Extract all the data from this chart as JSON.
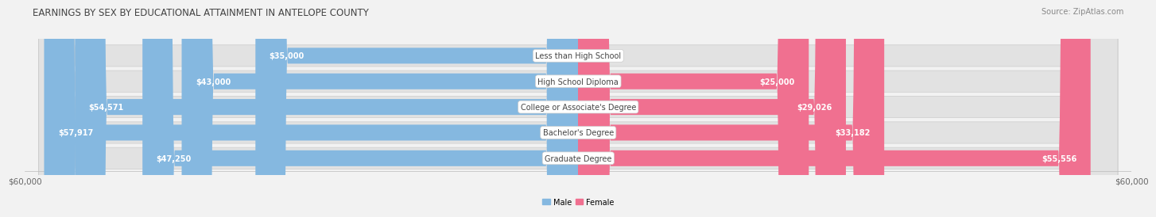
{
  "title": "EARNINGS BY SEX BY EDUCATIONAL ATTAINMENT IN ANTELOPE COUNTY",
  "source": "Source: ZipAtlas.com",
  "categories": [
    "Less than High School",
    "High School Diploma",
    "College or Associate's Degree",
    "Bachelor's Degree",
    "Graduate Degree"
  ],
  "male_values": [
    35000,
    43000,
    54571,
    57917,
    47250
  ],
  "female_values": [
    0,
    25000,
    29026,
    33182,
    55556
  ],
  "male_color": "#85b8e0",
  "female_color": "#f07090",
  "max_val": 60000,
  "bg_color": "#f2f2f2",
  "row_bg_color": "#e2e2e2",
  "axis_label_left": "$60,000",
  "axis_label_right": "$60,000",
  "title_fontsize": 8.5,
  "source_fontsize": 7,
  "bar_label_fontsize": 7,
  "cat_label_fontsize": 7,
  "axis_fontsize": 7.5,
  "legend_label_male": "Male",
  "legend_label_female": "Female"
}
